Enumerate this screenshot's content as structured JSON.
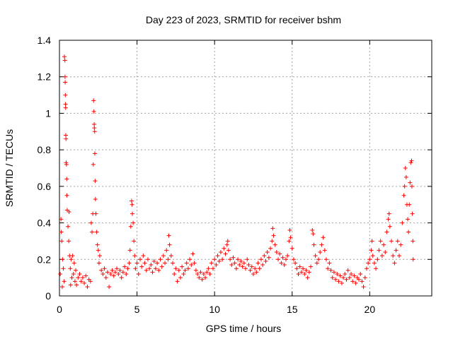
{
  "chart_data": {
    "type": "scatter",
    "title": "Day 223 of 2023, SRMTID for receiver bshm",
    "xlabel": "GPS time / hours",
    "ylabel": "SRMTID / TECUs",
    "xlim": [
      0,
      24
    ],
    "ylim": [
      0,
      1.4
    ],
    "xticks": [
      0,
      5,
      10,
      15,
      20
    ],
    "yticks": [
      0,
      0.2,
      0.4,
      0.6,
      0.8,
      1,
      1.2,
      1.4
    ],
    "xtick_labels": [
      "0",
      "5",
      "10",
      "15",
      "20"
    ],
    "ytick_labels": [
      "0",
      "0.2",
      "0.4",
      "0.6",
      "0.8",
      "1",
      "1.2",
      "1.4"
    ],
    "grid": true,
    "marker": "plus",
    "marker_color": "#ff0000",
    "series": [
      {
        "name": "SRMTID",
        "points": [
          [
            0.05,
            0.12
          ],
          [
            0.1,
            0.42
          ],
          [
            0.12,
            0.35
          ],
          [
            0.15,
            0.3
          ],
          [
            0.18,
            0.05
          ],
          [
            0.2,
            0.2
          ],
          [
            0.25,
            0.15
          ],
          [
            0.3,
            0.08
          ],
          [
            0.32,
            1.31
          ],
          [
            0.35,
            1.29
          ],
          [
            0.36,
            1.2
          ],
          [
            0.37,
            1.17
          ],
          [
            0.38,
            1.1
          ],
          [
            0.39,
            1.05
          ],
          [
            0.4,
            1.03
          ],
          [
            0.41,
            0.88
          ],
          [
            0.42,
            0.86
          ],
          [
            0.43,
            0.73
          ],
          [
            0.45,
            0.72
          ],
          [
            0.47,
            0.64
          ],
          [
            0.48,
            0.55
          ],
          [
            0.5,
            0.47
          ],
          [
            0.55,
            0.38
          ],
          [
            0.6,
            0.3
          ],
          [
            0.62,
            0.46
          ],
          [
            0.65,
            0.22
          ],
          [
            0.7,
            0.15
          ],
          [
            0.72,
            0.06
          ],
          [
            0.75,
            0.2
          ],
          [
            0.8,
            0.1
          ],
          [
            0.85,
            0.22
          ],
          [
            0.9,
            0.12
          ],
          [
            0.95,
            0.18
          ],
          [
            1.0,
            0.08
          ],
          [
            1.05,
            0.14
          ],
          [
            1.1,
            0.06
          ],
          [
            1.2,
            0.1
          ],
          [
            1.3,
            0.12
          ],
          [
            1.4,
            0.08
          ],
          [
            1.5,
            0.1
          ],
          [
            1.6,
            0.07
          ],
          [
            1.7,
            0.11
          ],
          [
            1.8,
            0.05
          ],
          [
            1.9,
            0.09
          ],
          [
            2.0,
            0.08
          ],
          [
            2.05,
            0.4
          ],
          [
            2.1,
            0.35
          ],
          [
            2.15,
            0.45
          ],
          [
            2.18,
            0.72
          ],
          [
            2.2,
            1.07
          ],
          [
            2.22,
            1.01
          ],
          [
            2.24,
            0.94
          ],
          [
            2.25,
            0.92
          ],
          [
            2.27,
            0.9
          ],
          [
            2.28,
            0.78
          ],
          [
            2.3,
            0.63
          ],
          [
            2.32,
            0.53
          ],
          [
            2.35,
            0.45
          ],
          [
            2.4,
            0.35
          ],
          [
            2.45,
            0.28
          ],
          [
            2.5,
            0.25
          ],
          [
            2.55,
            0.18
          ],
          [
            2.6,
            0.22
          ],
          [
            2.7,
            0.14
          ],
          [
            2.8,
            0.12
          ],
          [
            2.9,
            0.15
          ],
          [
            3.0,
            0.1
          ],
          [
            3.1,
            0.13
          ],
          [
            3.2,
            0.05
          ],
          [
            3.3,
            0.12
          ],
          [
            3.4,
            0.14
          ],
          [
            3.5,
            0.11
          ],
          [
            3.6,
            0.13
          ],
          [
            3.7,
            0.15
          ],
          [
            3.8,
            0.12
          ],
          [
            3.9,
            0.14
          ],
          [
            4.0,
            0.1
          ],
          [
            4.1,
            0.13
          ],
          [
            4.2,
            0.16
          ],
          [
            4.3,
            0.12
          ],
          [
            4.4,
            0.15
          ],
          [
            4.5,
            0.18
          ],
          [
            4.55,
            0.25
          ],
          [
            4.6,
            0.38
          ],
          [
            4.65,
            0.52
          ],
          [
            4.68,
            0.5
          ],
          [
            4.7,
            0.45
          ],
          [
            4.75,
            0.4
          ],
          [
            4.8,
            0.3
          ],
          [
            4.85,
            0.22
          ],
          [
            4.9,
            0.15
          ],
          [
            5.0,
            0.18
          ],
          [
            5.1,
            0.12
          ],
          [
            5.2,
            0.2
          ],
          [
            5.3,
            0.16
          ],
          [
            5.4,
            0.22
          ],
          [
            5.5,
            0.18
          ],
          [
            5.6,
            0.14
          ],
          [
            5.7,
            0.2
          ],
          [
            5.8,
            0.15
          ],
          [
            5.9,
            0.17
          ],
          [
            6.0,
            0.13
          ],
          [
            6.1,
            0.19
          ],
          [
            6.2,
            0.15
          ],
          [
            6.3,
            0.18
          ],
          [
            6.4,
            0.14
          ],
          [
            6.5,
            0.2
          ],
          [
            6.6,
            0.16
          ],
          [
            6.7,
            0.22
          ],
          [
            6.8,
            0.18
          ],
          [
            6.9,
            0.25
          ],
          [
            7.0,
            0.2
          ],
          [
            7.05,
            0.33
          ],
          [
            7.1,
            0.28
          ],
          [
            7.2,
            0.22
          ],
          [
            7.3,
            0.18
          ],
          [
            7.4,
            0.12
          ],
          [
            7.5,
            0.15
          ],
          [
            7.6,
            0.08
          ],
          [
            7.7,
            0.14
          ],
          [
            7.8,
            0.1
          ],
          [
            7.9,
            0.16
          ],
          [
            8.0,
            0.12
          ],
          [
            8.1,
            0.14
          ],
          [
            8.2,
            0.18
          ],
          [
            8.3,
            0.15
          ],
          [
            8.4,
            0.2
          ],
          [
            8.5,
            0.17
          ],
          [
            8.6,
            0.23
          ],
          [
            8.7,
            0.18
          ],
          [
            8.8,
            0.14
          ],
          [
            8.9,
            0.12
          ],
          [
            9.0,
            0.1
          ],
          [
            9.1,
            0.13
          ],
          [
            9.2,
            0.09
          ],
          [
            9.3,
            0.12
          ],
          [
            9.4,
            0.1
          ],
          [
            9.5,
            0.13
          ],
          [
            9.6,
            0.15
          ],
          [
            9.7,
            0.12
          ],
          [
            9.8,
            0.18
          ],
          [
            9.9,
            0.15
          ],
          [
            10.0,
            0.2
          ],
          [
            10.1,
            0.17
          ],
          [
            10.2,
            0.22
          ],
          [
            10.3,
            0.19
          ],
          [
            10.4,
            0.24
          ],
          [
            10.5,
            0.2
          ],
          [
            10.6,
            0.26
          ],
          [
            10.7,
            0.23
          ],
          [
            10.8,
            0.28
          ],
          [
            10.85,
            0.3
          ],
          [
            10.9,
            0.25
          ],
          [
            11.0,
            0.2
          ],
          [
            11.1,
            0.17
          ],
          [
            11.2,
            0.21
          ],
          [
            11.3,
            0.18
          ],
          [
            11.4,
            0.15
          ],
          [
            11.5,
            0.2
          ],
          [
            11.6,
            0.17
          ],
          [
            11.7,
            0.19
          ],
          [
            11.8,
            0.16
          ],
          [
            11.9,
            0.18
          ],
          [
            12.0,
            0.15
          ],
          [
            12.1,
            0.2
          ],
          [
            12.2,
            0.17
          ],
          [
            12.3,
            0.14
          ],
          [
            12.4,
            0.16
          ],
          [
            12.5,
            0.12
          ],
          [
            12.6,
            0.15
          ],
          [
            12.7,
            0.13
          ],
          [
            12.8,
            0.18
          ],
          [
            12.9,
            0.15
          ],
          [
            13.0,
            0.2
          ],
          [
            13.1,
            0.17
          ],
          [
            13.2,
            0.22
          ],
          [
            13.3,
            0.19
          ],
          [
            13.4,
            0.24
          ],
          [
            13.5,
            0.21
          ],
          [
            13.6,
            0.26
          ],
          [
            13.7,
            0.3
          ],
          [
            13.75,
            0.37
          ],
          [
            13.8,
            0.33
          ],
          [
            13.9,
            0.28
          ],
          [
            14.0,
            0.24
          ],
          [
            14.1,
            0.2
          ],
          [
            14.2,
            0.23
          ],
          [
            14.3,
            0.18
          ],
          [
            14.4,
            0.21
          ],
          [
            14.5,
            0.17
          ],
          [
            14.6,
            0.2
          ],
          [
            14.7,
            0.22
          ],
          [
            14.8,
            0.3
          ],
          [
            14.85,
            0.36
          ],
          [
            14.9,
            0.32
          ],
          [
            15.0,
            0.26
          ],
          [
            15.1,
            0.2
          ],
          [
            15.2,
            0.18
          ],
          [
            15.3,
            0.15
          ],
          [
            15.4,
            0.12
          ],
          [
            15.5,
            0.16
          ],
          [
            15.6,
            0.13
          ],
          [
            15.7,
            0.15
          ],
          [
            15.8,
            0.12
          ],
          [
            15.9,
            0.14
          ],
          [
            16.0,
            0.1
          ],
          [
            16.1,
            0.13
          ],
          [
            16.2,
            0.16
          ],
          [
            16.3,
            0.36
          ],
          [
            16.35,
            0.34
          ],
          [
            16.4,
            0.28
          ],
          [
            16.5,
            0.22
          ],
          [
            16.6,
            0.18
          ],
          [
            16.7,
            0.2
          ],
          [
            16.8,
            0.24
          ],
          [
            16.9,
            0.28
          ],
          [
            17.0,
            0.32
          ],
          [
            17.1,
            0.25
          ],
          [
            17.2,
            0.2
          ],
          [
            17.3,
            0.15
          ],
          [
            17.4,
            0.18
          ],
          [
            17.5,
            0.14
          ],
          [
            17.6,
            0.1
          ],
          [
            17.7,
            0.13
          ],
          [
            17.8,
            0.09
          ],
          [
            17.9,
            0.12
          ],
          [
            18.0,
            0.08
          ],
          [
            18.1,
            0.11
          ],
          [
            18.2,
            0.07
          ],
          [
            18.3,
            0.1
          ],
          [
            18.4,
            0.12
          ],
          [
            18.5,
            0.09
          ],
          [
            18.6,
            0.14
          ],
          [
            18.7,
            0.1
          ],
          [
            18.8,
            0.12
          ],
          [
            18.9,
            0.08
          ],
          [
            19.0,
            0.11
          ],
          [
            19.1,
            0.07
          ],
          [
            19.2,
            0.1
          ],
          [
            19.3,
            0.09
          ],
          [
            19.4,
            0.12
          ],
          [
            19.5,
            0.08
          ],
          [
            19.6,
            0.05
          ],
          [
            19.7,
            0.1
          ],
          [
            19.8,
            0.15
          ],
          [
            19.9,
            0.18
          ],
          [
            20.0,
            0.2
          ],
          [
            20.1,
            0.25
          ],
          [
            20.15,
            0.3
          ],
          [
            20.2,
            0.22
          ],
          [
            20.3,
            0.18
          ],
          [
            20.4,
            0.15
          ],
          [
            20.5,
            0.2
          ],
          [
            20.6,
            0.25
          ],
          [
            20.7,
            0.3
          ],
          [
            20.8,
            0.22
          ],
          [
            20.9,
            0.28
          ],
          [
            21.0,
            0.24
          ],
          [
            21.1,
            0.35
          ],
          [
            21.2,
            0.42
          ],
          [
            21.25,
            0.45
          ],
          [
            21.3,
            0.38
          ],
          [
            21.4,
            0.3
          ],
          [
            21.5,
            0.22
          ],
          [
            21.6,
            0.18
          ],
          [
            21.7,
            0.25
          ],
          [
            21.8,
            0.3
          ],
          [
            21.9,
            0.22
          ],
          [
            22.0,
            0.28
          ],
          [
            22.1,
            0.4
          ],
          [
            22.2,
            0.55
          ],
          [
            22.25,
            0.6
          ],
          [
            22.3,
            0.7
          ],
          [
            22.35,
            0.65
          ],
          [
            22.4,
            0.5
          ],
          [
            22.45,
            0.42
          ],
          [
            22.5,
            0.35
          ],
          [
            22.55,
            0.5
          ],
          [
            22.6,
            0.62
          ],
          [
            22.65,
            0.73
          ],
          [
            22.7,
            0.74
          ],
          [
            22.72,
            0.6
          ],
          [
            22.75,
            0.45
          ],
          [
            22.78,
            0.3
          ],
          [
            22.8,
            0.2
          ]
        ]
      }
    ]
  }
}
